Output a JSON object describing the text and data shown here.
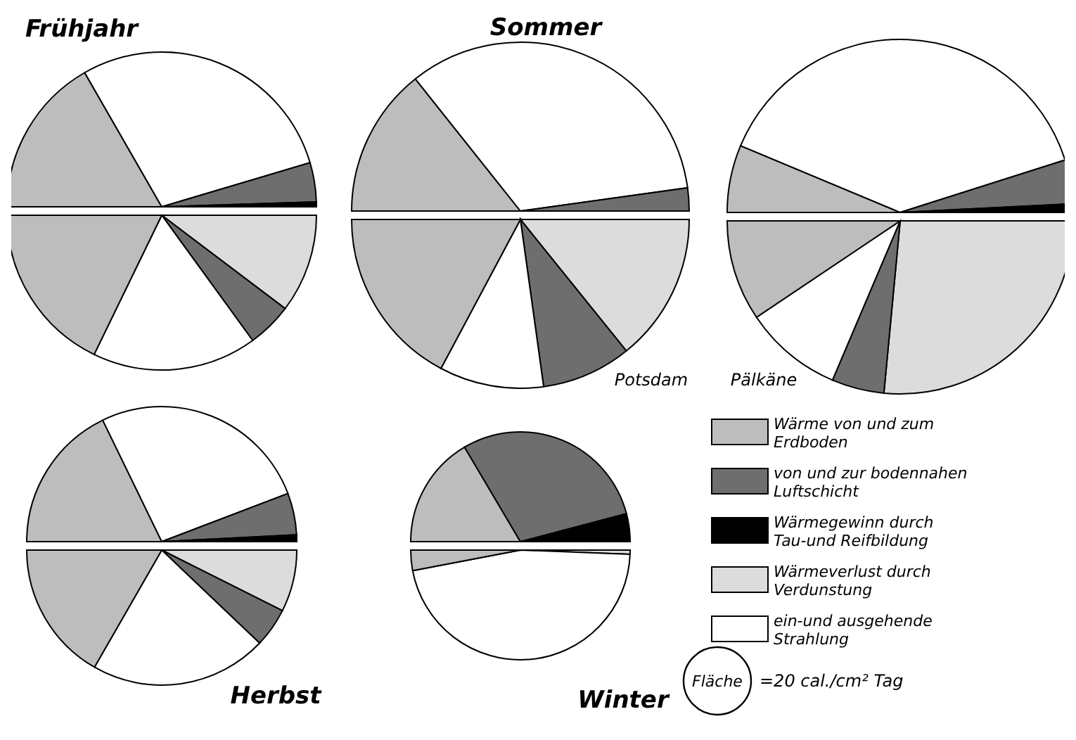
{
  "chart_data": [
    {
      "type": "pie",
      "title": "Frühjahr",
      "categories": [
        null,
        null,
        null,
        null,
        null,
        null,
        null,
        null
      ],
      "values": [
        16.7,
        28.7,
        4.1,
        0.5,
        10.3,
        4.7,
        17.2,
        17.8
      ],
      "colors": [
        "#bdbdbd",
        "#ffffff",
        "#6e6e6e",
        "#000000",
        "#dcdcdc",
        "#6e6e6e",
        "#ffffff",
        "#bdbdbd"
      ]
    },
    {
      "type": "pie",
      "title": "Sommer",
      "annotations": [
        "Potsdam"
      ],
      "categories": [
        null,
        null,
        null,
        null,
        null,
        null,
        null
      ],
      "values": [
        14.3,
        33.5,
        2.2,
        14.2,
        8.6,
        10,
        17.2
      ],
      "colors": [
        "#bdbdbd",
        "#ffffff",
        "#6e6e6e",
        "#dcdcdc",
        "#6e6e6e",
        "#ffffff",
        "#bdbdbd"
      ]
    },
    {
      "type": "pie",
      "annotations": [
        "Pälkäne"
      ],
      "categories": [
        null,
        null,
        null,
        null,
        null,
        null,
        null,
        null
      ],
      "values": [
        6.3,
        38.8,
        4.1,
        0.8,
        26.5,
        4.9,
        9.2,
        9.4
      ],
      "colors": [
        "#bdbdbd",
        "#ffffff",
        "#6e6e6e",
        "#000000",
        "#dcdcdc",
        "#6e6e6e",
        "#ffffff",
        "#bdbdbd"
      ]
    },
    {
      "type": "pie",
      "title": "Herbst",
      "categories": [
        null,
        null,
        null,
        null,
        null,
        null,
        null,
        null
      ],
      "values": [
        17.8,
        26.4,
        5,
        0.8,
        7.4,
        4.7,
        21.2,
        16.7
      ],
      "colors": [
        "#bdbdbd",
        "#ffffff",
        "#6e6e6e",
        "#000000",
        "#dcdcdc",
        "#6e6e6e",
        "#ffffff",
        "#bdbdbd"
      ]
    },
    {
      "type": "pie",
      "title": "Winter",
      "legend": "right",
      "annotations": [
        "Fläche",
        "=20 cal./cm² Tag"
      ],
      "categories": [
        "Wärme von und zum Erdboden",
        "von und zur bodennahen Luftschicht",
        "Wärmegewinn durch Tau-und Reifbildung",
        "Wärmeverlust durch Verdunstung",
        "ein-und ausgehende Strahlung",
        null
      ],
      "values": [
        16.5,
        29.4,
        4.1,
        0.6,
        46.4,
        3
      ],
      "colors": [
        "#bdbdbd",
        "#6e6e6e",
        "#000000",
        "#dcdcdc",
        "#ffffff",
        "#bdbdbd"
      ]
    }
  ]
}
